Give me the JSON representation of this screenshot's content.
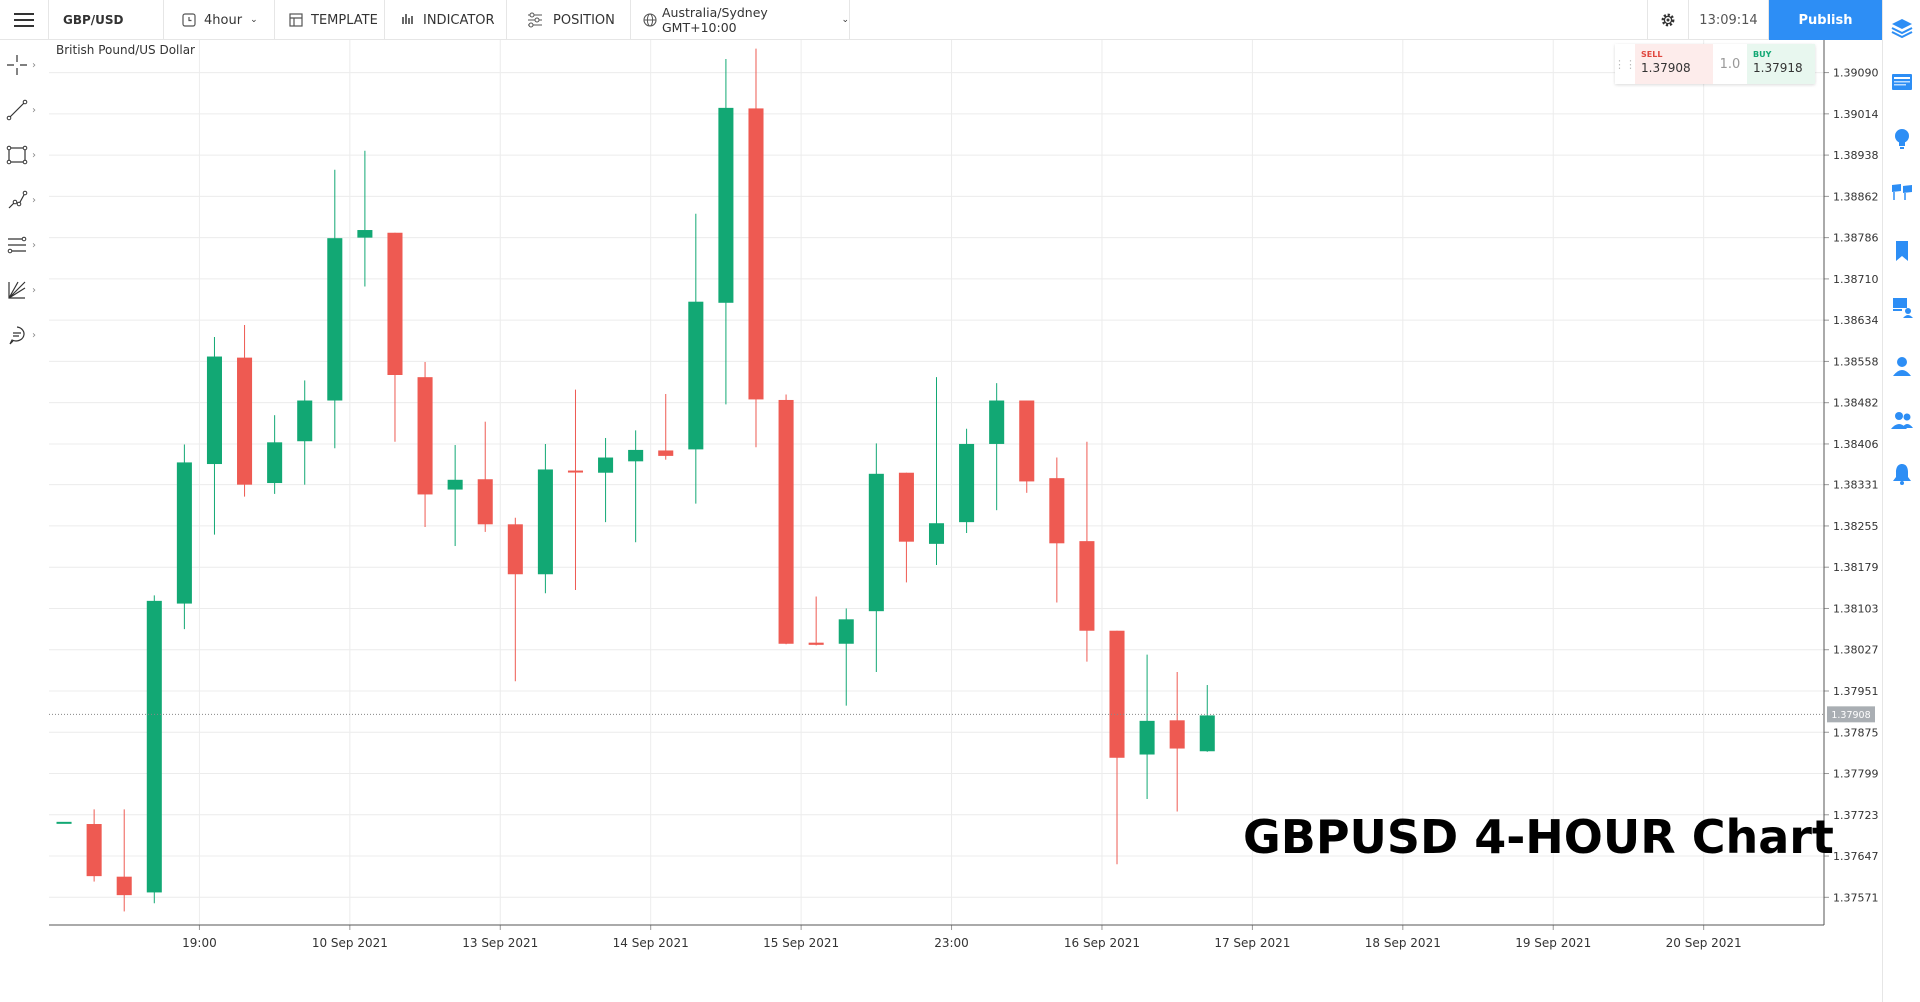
{
  "toolbar": {
    "symbol": "GBP/USD",
    "interval": "4hour",
    "template_label": "TEMPLATE",
    "indicator_label": "INDICATOR",
    "position_label": "POSITION",
    "timezone": "Australia/Sydney GMT+10:00",
    "clock": "13:09:14",
    "publish_label": "Publish"
  },
  "left_tools": [
    "crosshair-icon",
    "trendline-icon",
    "rectangle-icon",
    "path-icon",
    "fib-lines-icon",
    "gann-fan-icon",
    "comment-icon"
  ],
  "right_tools": [
    "layers-icon",
    "news-icon",
    "ideas-bulb-icon",
    "flags-icon",
    "bookmark-icon",
    "presenter-icon",
    "user-icon",
    "users-icon",
    "bell-icon"
  ],
  "trade_panel": {
    "sell_label": "SELL",
    "sell_price": "1.37908",
    "quantity": "1.0",
    "buy_label": "BUY",
    "buy_price": "1.37918"
  },
  "chart_data": {
    "type": "candlestick",
    "title": "British Pound/US Dollar",
    "watermark": "GBPUSD 4-HOUR Chart",
    "current_price": "1.37908",
    "up_color": "#12a874",
    "down_color": "#ee5a52",
    "y_ticks": [
      "1.39090",
      "1.39014",
      "1.38938",
      "1.38862",
      "1.38786",
      "1.38710",
      "1.38634",
      "1.38558",
      "1.38482",
      "1.38406",
      "1.38331",
      "1.38255",
      "1.38179",
      "1.38103",
      "1.38027",
      "1.37951",
      "1.37875",
      "1.37799",
      "1.37723",
      "1.37647",
      "1.37571"
    ],
    "ylim": [
      1.3752,
      1.3915
    ],
    "x_ticks": [
      "19:00",
      "10 Sep 2021",
      "13 Sep 2021",
      "14 Sep 2021",
      "15 Sep 2021",
      "23:00",
      "16 Sep 2021",
      "17 Sep 2021",
      "18 Sep 2021",
      "19 Sep 2021",
      "20 Sep 2021"
    ],
    "x_tick_index": [
      4.5,
      9.5,
      14.5,
      19.5,
      24.5,
      29.5,
      34.5,
      39.5,
      44.5,
      49.5,
      54.5
    ],
    "x_count": 59,
    "grid": true,
    "candles": [
      {
        "o": 1.3771,
        "h": 1.3771,
        "l": 1.3771,
        "c": 1.3771
      },
      {
        "o": 1.37706,
        "h": 1.37733,
        "l": 1.376,
        "c": 1.3761
      },
      {
        "o": 1.37609,
        "h": 1.37733,
        "l": 1.37545,
        "c": 1.37575
      },
      {
        "o": 1.3758,
        "h": 1.38127,
        "l": 1.3756,
        "c": 1.38117
      },
      {
        "o": 1.38112,
        "h": 1.38405,
        "l": 1.38065,
        "c": 1.38372
      },
      {
        "o": 1.38369,
        "h": 1.38603,
        "l": 1.38239,
        "c": 1.38567
      },
      {
        "o": 1.38565,
        "h": 1.38625,
        "l": 1.38309,
        "c": 1.38331
      },
      {
        "o": 1.38334,
        "h": 1.38459,
        "l": 1.38314,
        "c": 1.38409
      },
      {
        "o": 1.38411,
        "h": 1.38523,
        "l": 1.38331,
        "c": 1.38486
      },
      {
        "o": 1.38486,
        "h": 1.38911,
        "l": 1.38398,
        "c": 1.38785
      },
      {
        "o": 1.38786,
        "h": 1.38946,
        "l": 1.38696,
        "c": 1.388
      },
      {
        "o": 1.38795,
        "h": 1.38795,
        "l": 1.3841,
        "c": 1.38533
      },
      {
        "o": 1.38529,
        "h": 1.38557,
        "l": 1.38253,
        "c": 1.38313
      },
      {
        "o": 1.38322,
        "h": 1.38404,
        "l": 1.38218,
        "c": 1.3834
      },
      {
        "o": 1.38341,
        "h": 1.38447,
        "l": 1.38244,
        "c": 1.38258
      },
      {
        "o": 1.38258,
        "h": 1.3827,
        "l": 1.37969,
        "c": 1.38166
      },
      {
        "o": 1.38166,
        "h": 1.38406,
        "l": 1.38131,
        "c": 1.38359
      },
      {
        "o": 1.38357,
        "h": 1.38506,
        "l": 1.38137,
        "c": 1.38354
      },
      {
        "o": 1.38353,
        "h": 1.38417,
        "l": 1.38262,
        "c": 1.38381
      },
      {
        "o": 1.38374,
        "h": 1.38431,
        "l": 1.38225,
        "c": 1.38395
      },
      {
        "o": 1.38394,
        "h": 1.38498,
        "l": 1.38377,
        "c": 1.38384
      },
      {
        "o": 1.38396,
        "h": 1.3883,
        "l": 1.38296,
        "c": 1.38668
      },
      {
        "o": 1.38666,
        "h": 1.39115,
        "l": 1.38479,
        "c": 1.39025
      },
      {
        "o": 1.39024,
        "h": 1.39134,
        "l": 1.384,
        "c": 1.38488
      },
      {
        "o": 1.38487,
        "h": 1.38497,
        "l": 1.38037,
        "c": 1.38038
      },
      {
        "o": 1.3804,
        "h": 1.38125,
        "l": 1.38035,
        "c": 1.38036
      },
      {
        "o": 1.38038,
        "h": 1.38103,
        "l": 1.37924,
        "c": 1.38083
      },
      {
        "o": 1.38098,
        "h": 1.38407,
        "l": 1.37986,
        "c": 1.38351
      },
      {
        "o": 1.38353,
        "h": 1.38353,
        "l": 1.38151,
        "c": 1.38226
      },
      {
        "o": 1.38222,
        "h": 1.38529,
        "l": 1.38183,
        "c": 1.3826
      },
      {
        "o": 1.38262,
        "h": 1.38434,
        "l": 1.38242,
        "c": 1.38406
      },
      {
        "o": 1.38406,
        "h": 1.38518,
        "l": 1.38284,
        "c": 1.38486
      },
      {
        "o": 1.38486,
        "h": 1.38486,
        "l": 1.38316,
        "c": 1.38337
      },
      {
        "o": 1.38343,
        "h": 1.38381,
        "l": 1.38114,
        "c": 1.38223
      },
      {
        "o": 1.38227,
        "h": 1.3841,
        "l": 1.38005,
        "c": 1.38062
      },
      {
        "o": 1.38062,
        "h": 1.38062,
        "l": 1.37632,
        "c": 1.37828
      },
      {
        "o": 1.37834,
        "h": 1.38018,
        "l": 1.37752,
        "c": 1.37896
      },
      {
        "o": 1.37897,
        "h": 1.37986,
        "l": 1.37729,
        "c": 1.37845
      },
      {
        "o": 1.3784,
        "h": 1.37962,
        "l": 1.37839,
        "c": 1.37906
      }
    ]
  }
}
